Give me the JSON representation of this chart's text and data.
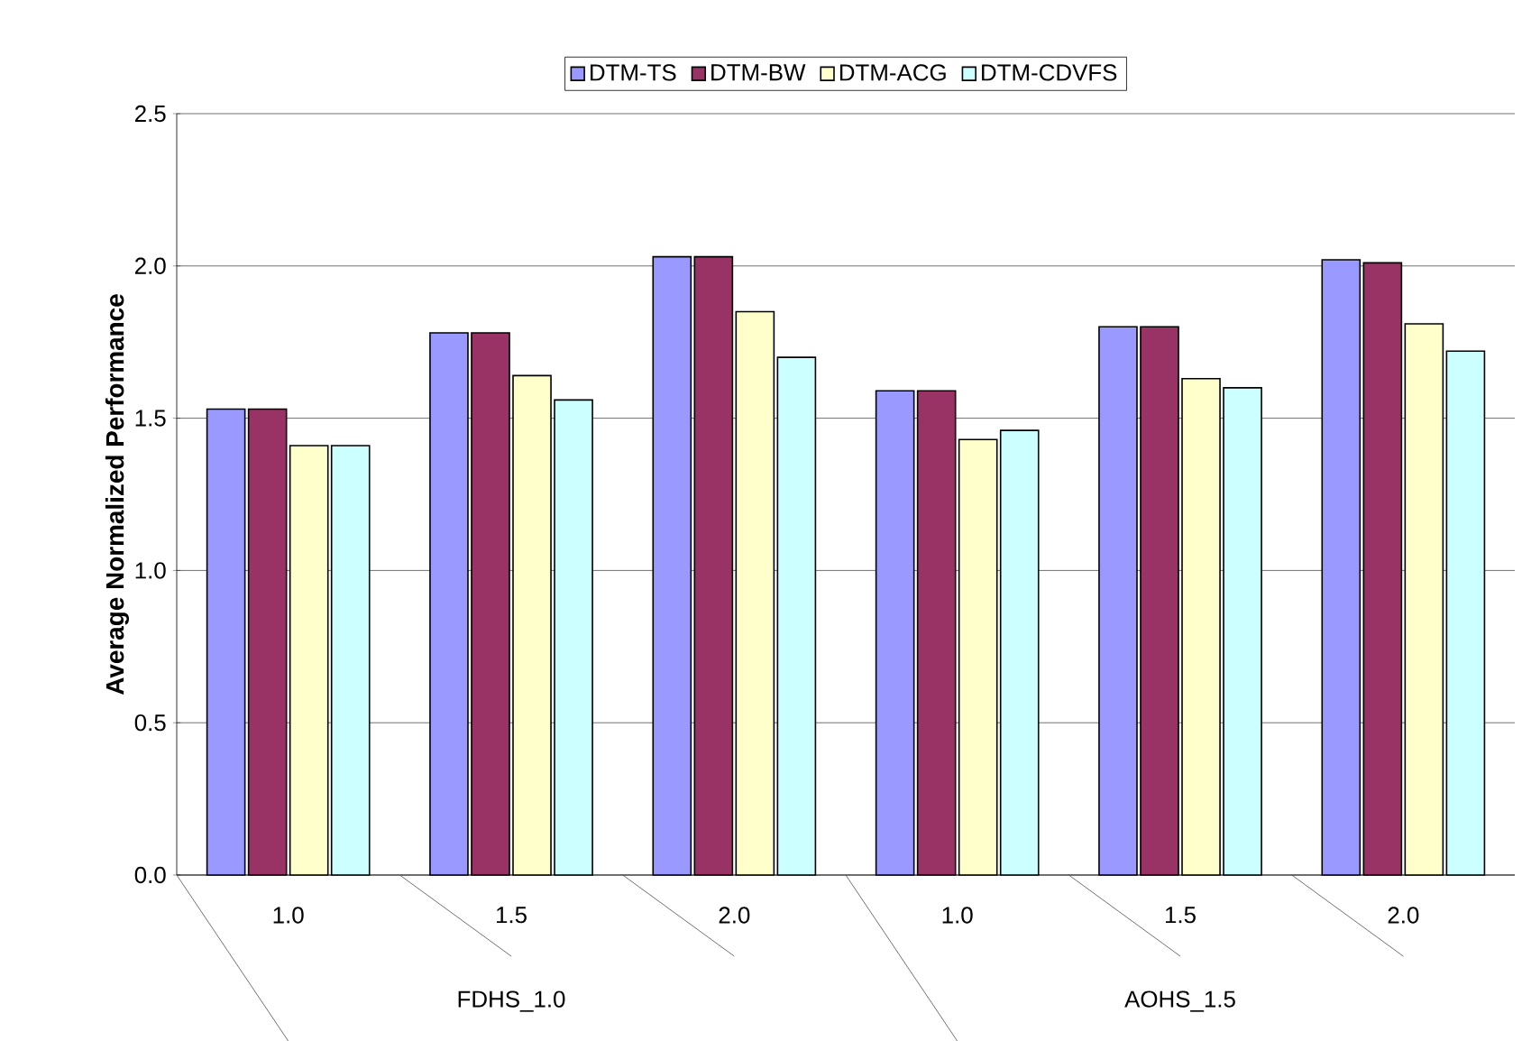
{
  "chart_data": {
    "type": "bar",
    "ylabel": "Average Normalized Performance",
    "categories": [
      "1.0",
      "1.5",
      "2.0",
      "1.0",
      "1.5",
      "2.0"
    ],
    "series": [
      {
        "name": "DTM-TS",
        "color": "#9999ff",
        "values": [
          1.53,
          1.78,
          2.03,
          1.59,
          1.8,
          2.02
        ]
      },
      {
        "name": "DTM-BW",
        "color": "#993366",
        "values": [
          1.53,
          1.78,
          2.03,
          1.59,
          1.8,
          2.01
        ]
      },
      {
        "name": "DTM-ACG",
        "color": "#ffffcc",
        "values": [
          1.41,
          1.64,
          1.85,
          1.43,
          1.63,
          1.81
        ]
      },
      {
        "name": "DTM-CDVFS",
        "color": "#ccffff",
        "values": [
          1.41,
          1.56,
          1.7,
          1.46,
          1.6,
          1.72
        ]
      }
    ],
    "annotations": [
      "FDHS_1.0",
      "AOHS_1.5"
    ],
    "ylim": [
      0,
      2.5
    ],
    "yticks": [
      {
        "value": 0,
        "label": "0.0"
      },
      {
        "value": 0.5,
        "label": "0.5"
      },
      {
        "value": 1,
        "label": "1.0"
      },
      {
        "value": 1.5,
        "label": "1.5"
      },
      {
        "value": 2,
        "label": "2.0"
      },
      {
        "value": 2.5,
        "label": "2.5"
      }
    ],
    "grid": "y",
    "legend": "top"
  }
}
